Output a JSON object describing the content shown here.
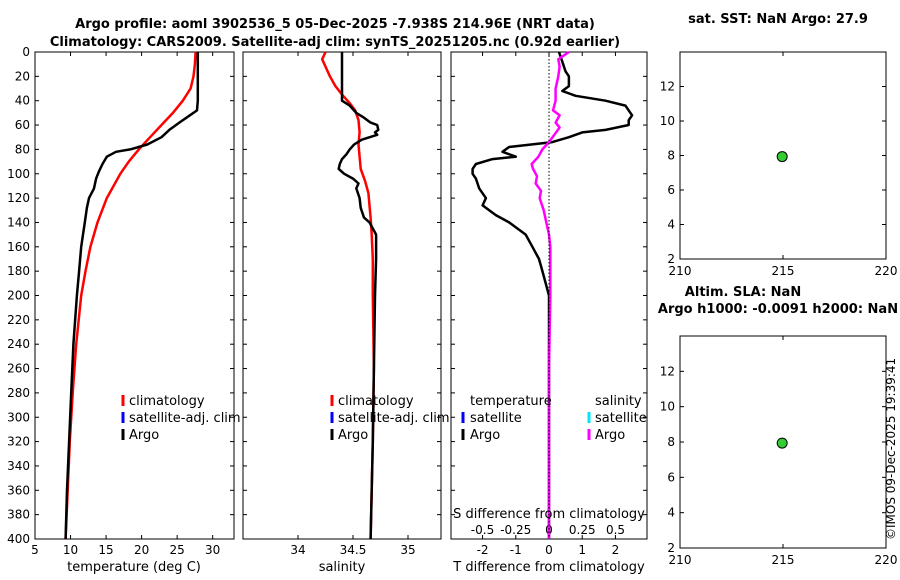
{
  "header": {
    "line1": "Argo profile: aoml 3902536_5 05-Dec-2025 -7.938S 214.96E (NRT data)",
    "line2": "Climatology: CARS2009. Satellite-adj clim: synTS_20251205.nc (0.92d earlier)"
  },
  "watermark": "©IMOS 09-Dec-2025 19:39:41",
  "colors": {
    "climatology": "#ff0000",
    "satellite": "#0000ff",
    "argo": "#000000",
    "satellite_cyan": "#00e5ff",
    "salinity_diff": "#ff00ff",
    "marker": "#33cc33"
  },
  "chart_data": [
    {
      "id": "temperature",
      "type": "line",
      "xlabel": "temperature (deg C)",
      "xlim": [
        5,
        33
      ],
      "xticks": [
        "5",
        "10",
        "15",
        "20",
        "25",
        "30"
      ],
      "xtick_values": [
        5,
        10,
        15,
        20,
        25,
        30
      ],
      "ylim": [
        0,
        400
      ],
      "yticks": [
        "0",
        "20",
        "40",
        "60",
        "80",
        "100",
        "120",
        "140",
        "160",
        "180",
        "200",
        "220",
        "240",
        "260",
        "280",
        "300",
        "320",
        "340",
        "360",
        "380",
        "400"
      ],
      "legend": [
        "climatology",
        "satellite-adj. clim",
        "Argo"
      ],
      "series": [
        {
          "name": "climatology",
          "color": "#ff0000",
          "depth": [
            0,
            10,
            20,
            30,
            40,
            50,
            60,
            70,
            80,
            90,
            100,
            120,
            140,
            160,
            180,
            200,
            240,
            280,
            320,
            360,
            400
          ],
          "values": [
            27.6,
            27.5,
            27.3,
            26.9,
            25.8,
            24.4,
            22.8,
            21.2,
            19.6,
            18.2,
            17.0,
            15.1,
            13.8,
            12.8,
            12.1,
            11.5,
            10.8,
            10.3,
            9.9,
            9.6,
            9.3
          ]
        },
        {
          "name": "Argo",
          "color": "#000000",
          "depth": [
            0,
            10,
            20,
            30,
            40,
            48,
            52,
            58,
            64,
            70,
            76,
            80,
            82,
            86,
            92,
            98,
            104,
            112,
            120,
            128,
            140,
            160,
            180,
            200,
            240,
            280,
            320,
            360,
            400
          ],
          "values": [
            27.9,
            27.9,
            27.9,
            27.9,
            27.9,
            27.8,
            26.8,
            25.3,
            23.9,
            22.8,
            20.8,
            18.4,
            16.4,
            15.1,
            14.5,
            14.0,
            13.6,
            13.3,
            12.6,
            12.3,
            12.0,
            11.5,
            11.2,
            10.9,
            10.4,
            10.1,
            9.8,
            9.5,
            9.3
          ]
        }
      ]
    },
    {
      "id": "salinity",
      "type": "line",
      "xlabel": "salinity",
      "xlim": [
        33.5,
        35.3
      ],
      "xticks": [
        "34",
        "34.5",
        "35"
      ],
      "xtick_values": [
        34,
        34.5,
        35
      ],
      "ylim": [
        0,
        400
      ],
      "legend": [
        "climatology",
        "satellite-adj. clim",
        "Argo"
      ],
      "series": [
        {
          "name": "climatology",
          "color": "#ff0000",
          "depth": [
            0,
            6,
            12,
            20,
            28,
            36,
            42,
            48,
            56,
            66,
            76,
            86,
            96,
            106,
            116,
            126,
            136,
            150,
            170,
            200,
            260,
            320,
            400
          ],
          "values": [
            34.25,
            34.22,
            34.25,
            34.29,
            34.34,
            34.41,
            34.47,
            34.52,
            34.55,
            34.56,
            34.55,
            34.56,
            34.57,
            34.61,
            34.64,
            34.65,
            34.66,
            34.67,
            34.68,
            34.68,
            34.69,
            34.68,
            34.66
          ]
        },
        {
          "name": "Argo",
          "color": "#000000",
          "depth": [
            0,
            40,
            44,
            50,
            54,
            58,
            60,
            64,
            66,
            68,
            72,
            76,
            80,
            84,
            88,
            92,
            96,
            100,
            104,
            108,
            112,
            120,
            128,
            136,
            140,
            150,
            170,
            200,
            260,
            320,
            400
          ],
          "values": [
            34.4,
            34.4,
            34.47,
            34.53,
            34.6,
            34.66,
            34.72,
            34.73,
            34.7,
            34.72,
            34.58,
            34.51,
            34.47,
            34.44,
            34.4,
            34.38,
            34.37,
            34.42,
            34.5,
            34.55,
            34.53,
            34.56,
            34.57,
            34.6,
            34.65,
            34.71,
            34.71,
            34.7,
            34.69,
            34.68,
            34.66
          ]
        }
      ]
    },
    {
      "id": "difference",
      "type": "line",
      "xlabel": "T difference from climatology",
      "xlabel_top": "S difference from climatology",
      "xlim": [
        -2.95,
        2.95
      ],
      "xticks": [
        "-2",
        "-1",
        "0",
        "1",
        "2"
      ],
      "xtick_values": [
        -2,
        -1,
        0,
        1,
        2
      ],
      "s_ticks": [
        "-0.5",
        "-0.25",
        "0",
        "0.25",
        "0.5"
      ],
      "s_tick_values": [
        -0.5,
        -0.25,
        0,
        0.25,
        0.5
      ],
      "s_xlim": [
        -0.737,
        0.737
      ],
      "ylim": [
        0,
        400
      ],
      "legend_temperature_title": "temperature",
      "legend_salinity_title": "salinity",
      "legend_temperature": [
        "satellite",
        "Argo"
      ],
      "legend_salinity": [
        "satellite",
        "Argo"
      ],
      "series": [
        {
          "name": "T difference (Argo)",
          "color": "#000000",
          "depth": [
            0,
            8,
            16,
            20,
            28,
            32,
            36,
            40,
            44,
            48,
            52,
            56,
            60,
            64,
            66,
            70,
            74,
            78,
            82,
            86,
            88,
            92,
            96,
            100,
            104,
            112,
            120,
            126,
            130,
            134,
            140,
            146,
            150,
            160,
            170,
            180,
            190,
            200,
            220,
            260,
            320,
            400
          ],
          "values": [
            0.3,
            0.4,
            0.5,
            0.6,
            0.6,
            0.4,
            0.8,
            1.7,
            2.3,
            2.4,
            2.5,
            2.4,
            2.4,
            1.7,
            1.0,
            0.6,
            0.1,
            -1.2,
            -1.4,
            -1.0,
            -1.7,
            -2.2,
            -2.3,
            -2.3,
            -2.2,
            -2.1,
            -1.9,
            -2.0,
            -1.8,
            -1.6,
            -1.2,
            -0.9,
            -0.7,
            -0.5,
            -0.3,
            -0.2,
            -0.1,
            0.0,
            0.0,
            0.0,
            0.0,
            0.0
          ]
        },
        {
          "name": "S difference (Argo)",
          "color": "#ff00ff",
          "depth": [
            0,
            6,
            12,
            20,
            30,
            40,
            48,
            52,
            58,
            62,
            68,
            74,
            80,
            86,
            92,
            96,
            102,
            108,
            114,
            120,
            130,
            140,
            150,
            160,
            200,
            260,
            320,
            400
          ],
          "values": [
            0.15,
            0.07,
            0.08,
            0.07,
            0.05,
            0.05,
            0.03,
            0.08,
            0.05,
            0.08,
            0.04,
            0.0,
            -0.05,
            -0.08,
            -0.13,
            -0.12,
            -0.09,
            -0.1,
            -0.06,
            -0.07,
            -0.04,
            -0.02,
            0.0,
            0.01,
            0.01,
            0.0,
            0.0,
            0.0
          ]
        }
      ]
    },
    {
      "id": "sst",
      "type": "scatter",
      "title": "sat. SST: NaN Argo: 27.9",
      "xlim": [
        210,
        220
      ],
      "ylim": [
        2,
        14
      ],
      "xticks": [
        "210",
        "215",
        "220"
      ],
      "xtick_values": [
        210,
        215,
        220
      ],
      "yticks": [
        "2",
        "4",
        "6",
        "8",
        "10",
        "12"
      ],
      "ytick_values": [
        2,
        4,
        6,
        8,
        10,
        12
      ],
      "points": [
        {
          "x": 214.96,
          "y": 7.938
        }
      ]
    },
    {
      "id": "sla",
      "type": "scatter",
      "title1": "Altim. SLA: NaN",
      "title2": "Argo h1000: -0.0091 h2000: NaN",
      "xlim": [
        210,
        220
      ],
      "ylim": [
        2,
        14
      ],
      "xticks": [
        "210",
        "215",
        "220"
      ],
      "xtick_values": [
        210,
        215,
        220
      ],
      "yticks": [
        "2",
        "4",
        "6",
        "8",
        "10",
        "12"
      ],
      "ytick_values": [
        2,
        4,
        6,
        8,
        10,
        12
      ],
      "points": [
        {
          "x": 214.96,
          "y": 7.938
        }
      ]
    }
  ]
}
